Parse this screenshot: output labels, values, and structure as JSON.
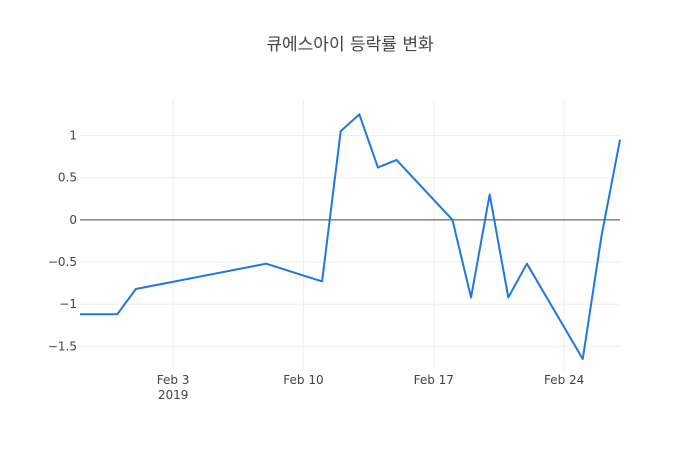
{
  "chart_data": {
    "type": "line",
    "title": "큐에스아이 등락률 변화",
    "xlabel": "",
    "ylabel": "",
    "x_range": [
      "2019-01-29",
      "2019-02-27"
    ],
    "ylim": [
      -1.78,
      1.42
    ],
    "grid": true,
    "zero_line": true,
    "line_color": "#1f77e0",
    "x_ticks": [
      {
        "date": "2019-02-03",
        "label": "Feb 3",
        "sublabel": "2019"
      },
      {
        "date": "2019-02-10",
        "label": "Feb 10",
        "sublabel": ""
      },
      {
        "date": "2019-02-17",
        "label": "Feb 17",
        "sublabel": ""
      },
      {
        "date": "2019-02-24",
        "label": "Feb 24",
        "sublabel": ""
      }
    ],
    "y_ticks": [
      {
        "value": 1,
        "label": "1"
      },
      {
        "value": 0.5,
        "label": "0.5"
      },
      {
        "value": 0,
        "label": "0"
      },
      {
        "value": -0.5,
        "label": "−0.5"
      },
      {
        "value": -1,
        "label": "−1"
      },
      {
        "value": -1.5,
        "label": "−1.5"
      }
    ],
    "series": [
      {
        "points": [
          {
            "x": "2019-01-29",
            "y": -1.12
          },
          {
            "x": "2019-01-31",
            "y": -1.12
          },
          {
            "x": "2019-02-01",
            "y": -0.82
          },
          {
            "x": "2019-02-08",
            "y": -0.52
          },
          {
            "x": "2019-02-11",
            "y": -0.73
          },
          {
            "x": "2019-02-12",
            "y": 1.05
          },
          {
            "x": "2019-02-13",
            "y": 1.25
          },
          {
            "x": "2019-02-14",
            "y": 0.62
          },
          {
            "x": "2019-02-15",
            "y": 0.71
          },
          {
            "x": "2019-02-18",
            "y": 0.0
          },
          {
            "x": "2019-02-19",
            "y": -0.92
          },
          {
            "x": "2019-02-20",
            "y": 0.3
          },
          {
            "x": "2019-02-21",
            "y": -0.92
          },
          {
            "x": "2019-02-22",
            "y": -0.52
          },
          {
            "x": "2019-02-25",
            "y": -1.65
          },
          {
            "x": "2019-02-26",
            "y": -0.2
          },
          {
            "x": "2019-02-27",
            "y": 0.95
          }
        ]
      }
    ]
  }
}
